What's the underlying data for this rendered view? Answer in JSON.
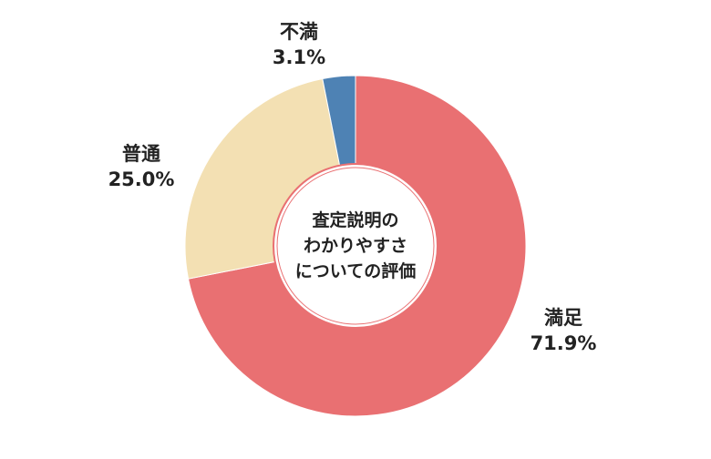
{
  "chart_data": {
    "type": "pie",
    "title": "",
    "center_label": [
      "査定説明の",
      "わかりやすさ",
      "についての評価"
    ],
    "slices": [
      {
        "name": "満足",
        "value": 71.9,
        "value_label": "71.9%",
        "color": "#e97072"
      },
      {
        "name": "普通",
        "value": 25.0,
        "value_label": "25.0%",
        "color": "#f3e0b3"
      },
      {
        "name": "不満",
        "value": 3.1,
        "value_label": "3.1%",
        "color": "#4e82b4"
      }
    ]
  }
}
